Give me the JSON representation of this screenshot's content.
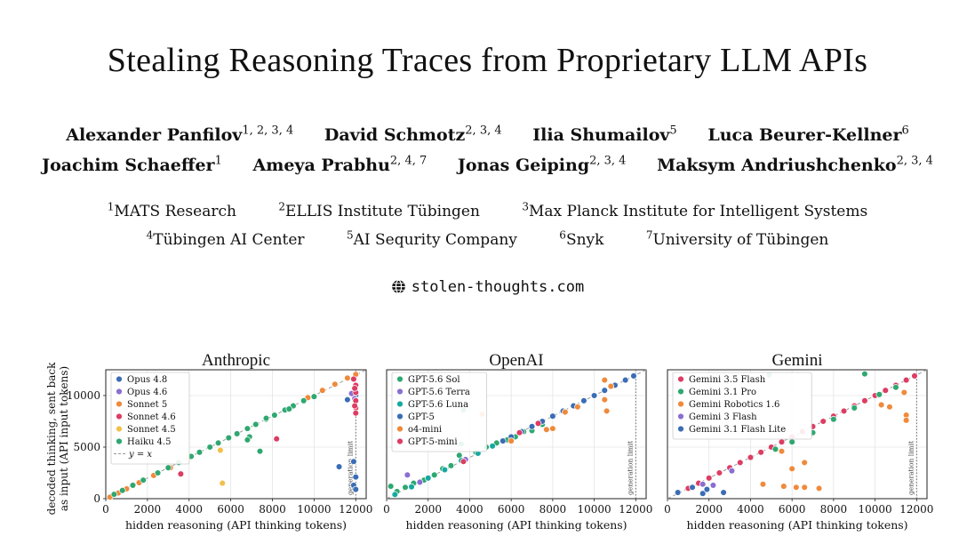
{
  "title": "Stealing Reasoning Traces from Proprietary LLM APIs",
  "authors": [
    [
      {
        "name": "Alexander Panfilov",
        "sup": "1, 2, 3, 4"
      },
      {
        "name": "David Schmotz",
        "sup": "2, 3, 4"
      },
      {
        "name": "Ilia Shumailov",
        "sup": "5"
      },
      {
        "name": "Luca Beurer-Kellner",
        "sup": "6"
      }
    ],
    [
      {
        "name": "Joachim Schaeffer",
        "sup": "1"
      },
      {
        "name": "Ameya Prabhu",
        "sup": "2, 4, 7"
      },
      {
        "name": "Jonas Geiping",
        "sup": "2, 3, 4"
      },
      {
        "name": "Maksym Andriushchenko",
        "sup": "2, 3, 4"
      }
    ]
  ],
  "affiliations": [
    [
      {
        "num": "1",
        "name": "MATS Research"
      },
      {
        "num": "2",
        "name": "ELLIS Institute Tübingen"
      },
      {
        "num": "3",
        "name": "Max Planck Institute for Intelligent Systems"
      }
    ],
    [
      {
        "num": "4",
        "name": "Tübingen AI Center"
      },
      {
        "num": "5",
        "name": "AI Sequrity Company"
      },
      {
        "num": "6",
        "name": "Snyk"
      },
      {
        "num": "7",
        "name": "University of Tübingen"
      }
    ]
  ],
  "website": {
    "icon": "globe-icon",
    "url": "stolen-thoughts.com"
  },
  "chart_data": [
    {
      "type": "scatter",
      "title": "Anthropic",
      "xlabel": "hidden reasoning (API thinking tokens)",
      "ylabel": [
        "decoded thinking, sent back",
        "as input (API input tokens)"
      ],
      "xlim": [
        0,
        12500
      ],
      "ylim": [
        0,
        12500
      ],
      "xticks": [
        "0",
        "2000",
        "4000",
        "6000",
        "8000",
        "10000",
        "12000"
      ],
      "yticks": [
        "0",
        "5000",
        "10000"
      ],
      "grid": true,
      "legend_position": "top-left",
      "reference_line": {
        "label": "y = x"
      },
      "limit_line": {
        "x": 12000,
        "label": "generation limit"
      },
      "series": [
        {
          "name": "Opus 4.8",
          "color": "#3a6db5",
          "points": [
            [
              11200,
              3100
            ],
            [
              11900,
              3600
            ],
            [
              12000,
              2100
            ],
            [
              11900,
              1300
            ],
            [
              12000,
              900
            ],
            [
              11600,
              9600
            ],
            [
              12000,
              10000
            ]
          ]
        },
        {
          "name": "Opus 4.6",
          "color": "#8a6fd1",
          "points": [
            [
              11800,
              10200
            ],
            [
              11950,
              9700
            ]
          ]
        },
        {
          "name": "Sonnet 5",
          "color": "#ef8a3c",
          "points": [
            [
              200,
              150
            ],
            [
              600,
              550
            ],
            [
              1000,
              950
            ],
            [
              1600,
              1550
            ],
            [
              2300,
              2250
            ],
            [
              3100,
              3000
            ],
            [
              9700,
              9800
            ],
            [
              10400,
              10500
            ],
            [
              11000,
              11100
            ],
            [
              11600,
              11700
            ],
            [
              12000,
              12050
            ]
          ]
        },
        {
          "name": "Sonnet 4.6",
          "color": "#dc3d63",
          "points": [
            [
              3600,
              2400
            ],
            [
              8200,
              5800
            ],
            [
              11900,
              11600
            ],
            [
              12000,
              11000
            ],
            [
              12000,
              10300
            ],
            [
              12000,
              9500
            ],
            [
              12000,
              8800
            ],
            [
              12000,
              8300
            ],
            [
              11950,
              9000
            ],
            [
              11950,
              10700
            ]
          ]
        },
        {
          "name": "Sonnet 4.5",
          "color": "#f2c04a",
          "points": [
            [
              5500,
              4700
            ],
            [
              5600,
              1500
            ],
            [
              4000,
              4000
            ],
            [
              6300,
              6300
            ]
          ]
        },
        {
          "name": "Haiku 4.5",
          "color": "#2ea870",
          "points": [
            [
              400,
              420
            ],
            [
              800,
              800
            ],
            [
              1300,
              1300
            ],
            [
              1800,
              1800
            ],
            [
              2500,
              2500
            ],
            [
              3000,
              3000
            ],
            [
              3500,
              3500
            ],
            [
              4100,
              4100
            ],
            [
              4500,
              4500
            ],
            [
              5000,
              5000
            ],
            [
              5400,
              5400
            ],
            [
              5900,
              5900
            ],
            [
              6300,
              6300
            ],
            [
              6800,
              6800
            ],
            [
              7200,
              7200
            ],
            [
              7700,
              7700
            ],
            [
              8100,
              8100
            ],
            [
              8600,
              8600
            ],
            [
              9000,
              9000
            ],
            [
              9500,
              9500
            ],
            [
              6900,
              6000
            ],
            [
              6800,
              5700
            ],
            [
              7400,
              4600
            ],
            [
              7700,
              7800
            ],
            [
              8800,
              8700
            ],
            [
              10000,
              9900
            ]
          ]
        }
      ]
    },
    {
      "type": "scatter",
      "title": "OpenAI",
      "xlabel": "hidden reasoning (API thinking tokens)",
      "xlim": [
        0,
        12500
      ],
      "ylim": [
        0,
        12500
      ],
      "xticks": [
        "0",
        "2000",
        "4000",
        "6000",
        "8000",
        "10000",
        "12000"
      ],
      "grid": true,
      "legend_position": "top-left",
      "limit_line": {
        "x": 12000,
        "label": "generation limit"
      },
      "series": [
        {
          "name": "GPT-5.6 Sol",
          "color": "#2ea870",
          "points": [
            [
              200,
              1200
            ],
            [
              500,
              700
            ],
            [
              900,
              1100
            ],
            [
              1300,
              1500
            ],
            [
              1800,
              1800
            ],
            [
              2300,
              2300
            ],
            [
              2700,
              2900
            ],
            [
              3100,
              3200
            ],
            [
              3500,
              4200
            ],
            [
              3600,
              5300
            ],
            [
              3700,
              8600
            ],
            [
              4300,
              4500
            ],
            [
              4800,
              5000
            ],
            [
              5300,
              5400
            ],
            [
              5800,
              5700
            ],
            [
              6200,
              6000
            ],
            [
              6600,
              6500
            ],
            [
              7000,
              6600
            ],
            [
              7500,
              7200
            ]
          ]
        },
        {
          "name": "GPT-5.6 Terra",
          "color": "#8a6fd1",
          "points": [
            [
              1000,
              2300
            ],
            [
              1600,
              1600
            ],
            [
              3800,
              3800
            ]
          ]
        },
        {
          "name": "GPT-5.6 Luna",
          "color": "#16a9a0",
          "points": [
            [
              400,
              400
            ],
            [
              1200,
              1150
            ],
            [
              2000,
              2000
            ],
            [
              2800,
              2800
            ],
            [
              3600,
              3700
            ],
            [
              4400,
              4400
            ],
            [
              5100,
              5100
            ]
          ]
        },
        {
          "name": "GPT-5",
          "color": "#3a6db5",
          "points": [
            [
              5600,
              5600
            ],
            [
              6000,
              6000
            ],
            [
              6500,
              6500
            ],
            [
              7000,
              7000
            ],
            [
              7500,
              7500
            ],
            [
              8000,
              8000
            ],
            [
              8500,
              8500
            ],
            [
              9000,
              9000
            ],
            [
              9500,
              9500
            ],
            [
              10000,
              10000
            ],
            [
              10500,
              10500
            ],
            [
              11000,
              11000
            ],
            [
              11500,
              11500
            ],
            [
              11900,
              11900
            ]
          ]
        },
        {
          "name": "o4-mini",
          "color": "#ef8a3c",
          "points": [
            [
              4600,
              8200
            ],
            [
              6000,
              5600
            ],
            [
              7700,
              6700
            ],
            [
              8000,
              6800
            ],
            [
              10500,
              11500
            ],
            [
              10500,
              9600
            ],
            [
              10600,
              8500
            ],
            [
              10800,
              10900
            ],
            [
              9200,
              8900
            ],
            [
              8600,
              8400
            ]
          ]
        },
        {
          "name": "GPT-5-mini",
          "color": "#dc3d63",
          "points": [
            [
              3700,
              3600
            ],
            [
              6400,
              6400
            ],
            [
              7300,
              7300
            ]
          ]
        }
      ]
    },
    {
      "type": "scatter",
      "title": "Gemini",
      "xlabel": "hidden reasoning (API thinking tokens)",
      "xlim": [
        0,
        12500
      ],
      "ylim": [
        0,
        12500
      ],
      "xticks": [
        "0",
        "2000",
        "4000",
        "6000",
        "8000",
        "10000",
        "12000"
      ],
      "grid": true,
      "legend_position": "top-left",
      "limit_line": {
        "x": 12000,
        "label": "generation limit"
      },
      "series": [
        {
          "name": "Gemini 3.5 Flash",
          "color": "#dc3d63",
          "points": [
            [
              1000,
              1000
            ],
            [
              1500,
              1500
            ],
            [
              2000,
              2000
            ],
            [
              2500,
              2500
            ],
            [
              3000,
              3000
            ],
            [
              3500,
              3500
            ],
            [
              4000,
              4000
            ],
            [
              4500,
              4500
            ],
            [
              5000,
              5000
            ],
            [
              5500,
              5500
            ],
            [
              6000,
              6000
            ],
            [
              6500,
              6500
            ],
            [
              7000,
              7000
            ],
            [
              7500,
              7500
            ],
            [
              8000,
              8000
            ],
            [
              8500,
              8500
            ],
            [
              9000,
              9000
            ],
            [
              9500,
              9500
            ],
            [
              10000,
              10000
            ],
            [
              10500,
              10500
            ],
            [
              11000,
              11000
            ],
            [
              11500,
              11500
            ],
            [
              11900,
              11900
            ]
          ]
        },
        {
          "name": "Gemini 3.1 Pro",
          "color": "#2ea870",
          "points": [
            [
              4900,
              12000
            ],
            [
              9500,
              12100
            ],
            [
              5200,
              4800
            ],
            [
              6000,
              5500
            ],
            [
              7000,
              6400
            ],
            [
              8000,
              7700
            ],
            [
              9000,
              8800
            ],
            [
              10200,
              10100
            ],
            [
              11000,
              10800
            ]
          ]
        },
        {
          "name": "Gemini Robotics 1.6",
          "color": "#ef8a3c",
          "points": [
            [
              4600,
              1400
            ],
            [
              5600,
              1200
            ],
            [
              6000,
              2900
            ],
            [
              6200,
              1100
            ],
            [
              6600,
              1100
            ],
            [
              7300,
              1000
            ],
            [
              6600,
              3500
            ],
            [
              5500,
              4600
            ],
            [
              10300,
              9100
            ],
            [
              10700,
              8900
            ],
            [
              11500,
              8100
            ],
            [
              11500,
              7600
            ],
            [
              11400,
              10300
            ]
          ]
        },
        {
          "name": "Gemini 3 Flash",
          "color": "#8a6fd1",
          "points": [
            [
              1700,
              1400
            ],
            [
              2200,
              1300
            ],
            [
              3100,
              2700
            ]
          ]
        },
        {
          "name": "Gemini 3.1 Flash Lite",
          "color": "#3a6db5",
          "points": [
            [
              500,
              600
            ],
            [
              1200,
              1100
            ],
            [
              1700,
              500
            ],
            [
              1900,
              900
            ],
            [
              2700,
              600
            ]
          ]
        }
      ]
    }
  ]
}
